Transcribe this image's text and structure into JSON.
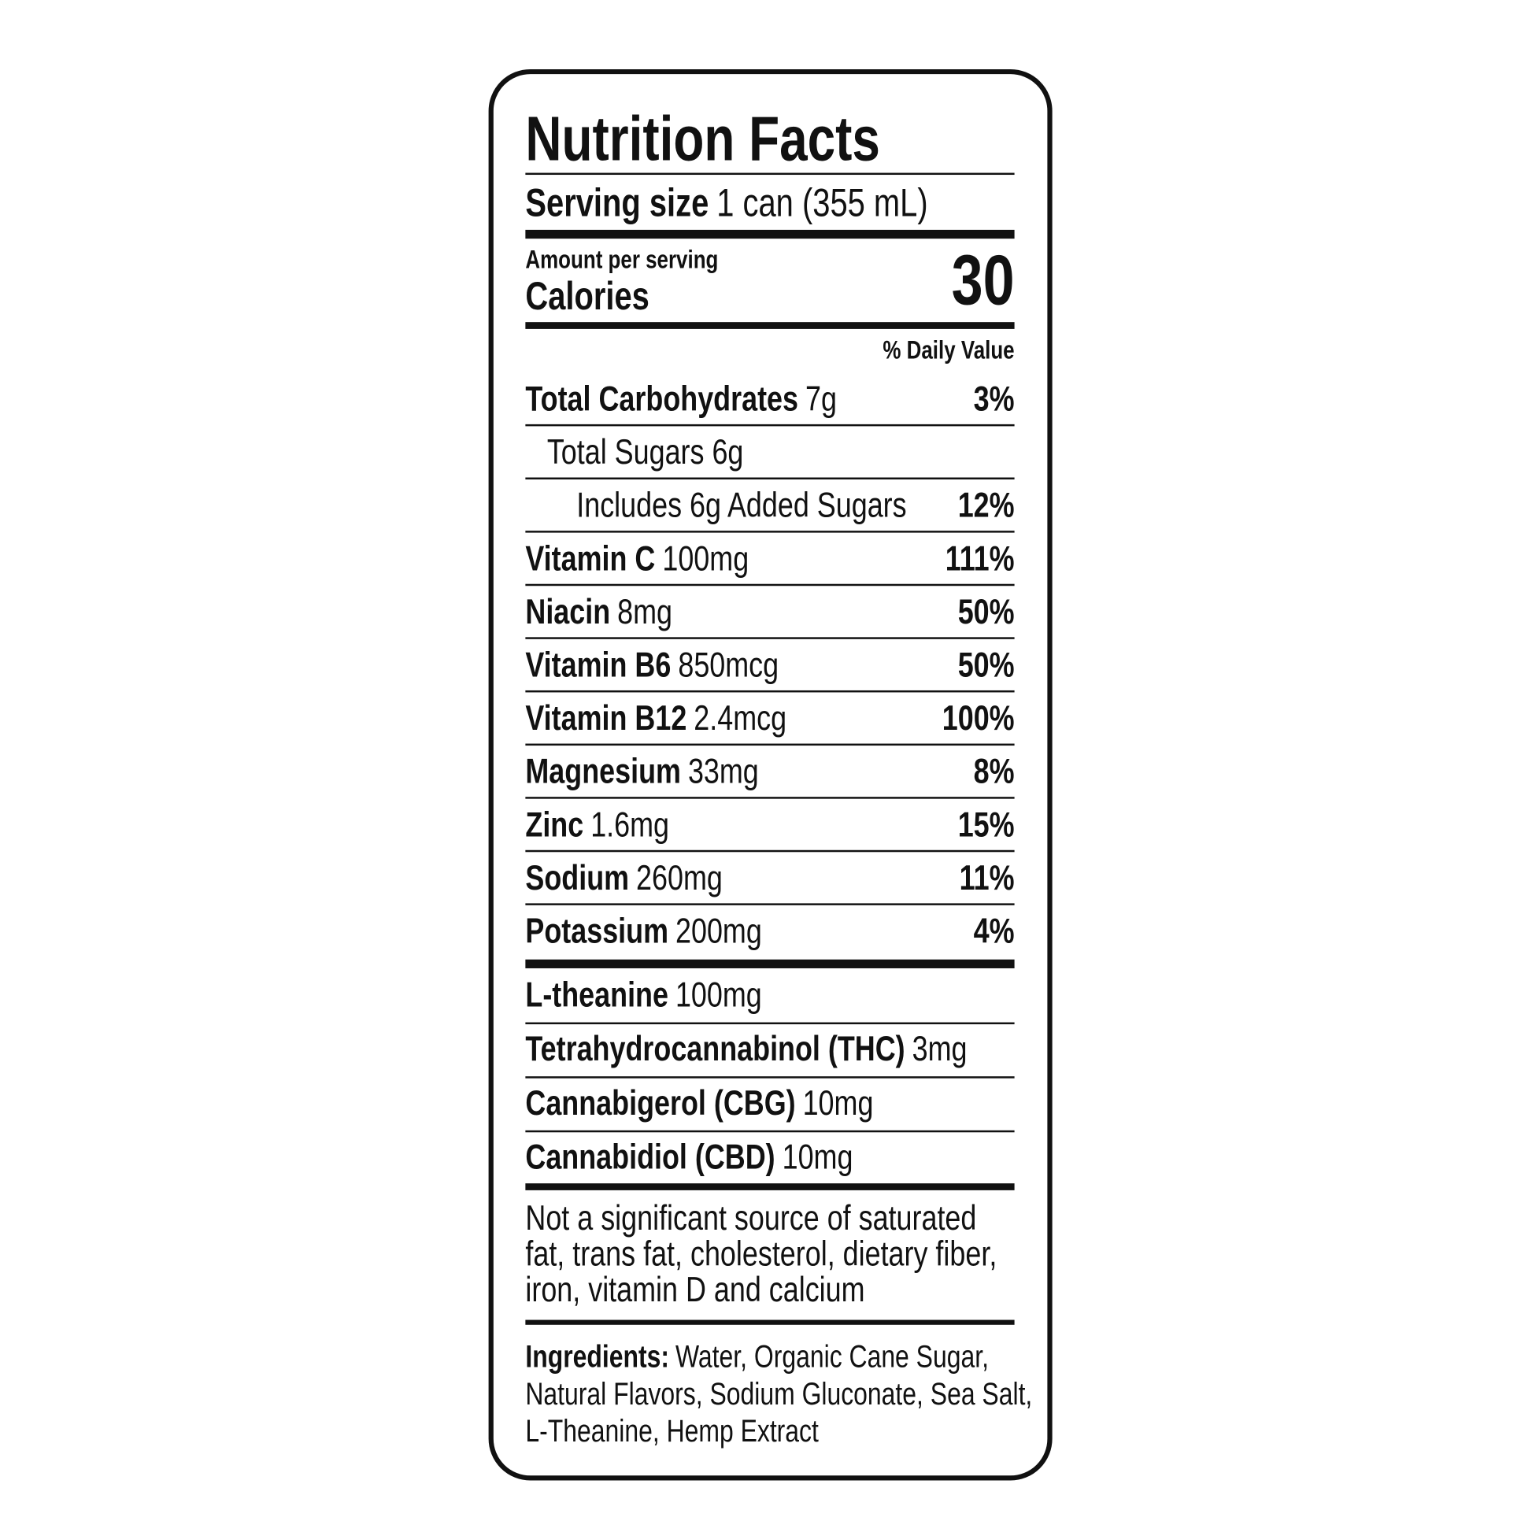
{
  "header": {
    "title": "Nutrition Facts",
    "serving_label": "Serving size",
    "serving_value": "1 can (355 mL)",
    "amount_per_serving": "Amount per serving",
    "calories_label": "Calories",
    "calories": "30",
    "daily_value_header": "% Daily Value"
  },
  "nutrients": [
    {
      "name": "Total Carbohydrates",
      "amount": "7g",
      "dv": "3%"
    },
    {
      "text": "Total Sugars 6g"
    },
    {
      "text": "Includes 6g Added Sugars",
      "dv": "12%"
    },
    {
      "name": "Vitamin C",
      "amount": "100mg",
      "dv": "111%"
    },
    {
      "name": "Niacin",
      "amount": "8mg",
      "dv": "50%"
    },
    {
      "name": "Vitamin B6",
      "amount": "850mcg",
      "dv": "50%"
    },
    {
      "name": "Vitamin B12",
      "amount": "2.4mcg",
      "dv": "100%"
    },
    {
      "name": "Magnesium",
      "amount": "33mg",
      "dv": "8%"
    },
    {
      "name": "Zinc",
      "amount": "1.6mg",
      "dv": "15%"
    },
    {
      "name": "Sodium",
      "amount": "260mg",
      "dv": "11%"
    },
    {
      "name": "Potassium",
      "amount": "200mg",
      "dv": "4%"
    }
  ],
  "other_ingredients": [
    {
      "name": "L-theanine",
      "amount": "100mg"
    },
    {
      "name": "Tetrahydrocannabinol (THC)",
      "amount": "3mg"
    },
    {
      "name": "Cannabigerol (CBG)",
      "amount": "10mg"
    },
    {
      "name": "Cannabidiol (CBD)",
      "amount": "10mg"
    }
  ],
  "footnote": [
    "Not a significant source of saturated",
    "fat, trans fat, cholesterol, dietary fiber,",
    "iron, vitamin D and calcium"
  ],
  "ingredients": {
    "label": "Ingredients:",
    "lines": [
      "Water, Organic Cane Sugar,",
      "Natural Flavors, Sodium Gluconate, Sea Salt,",
      "L-Theanine, Hemp Extract"
    ]
  }
}
